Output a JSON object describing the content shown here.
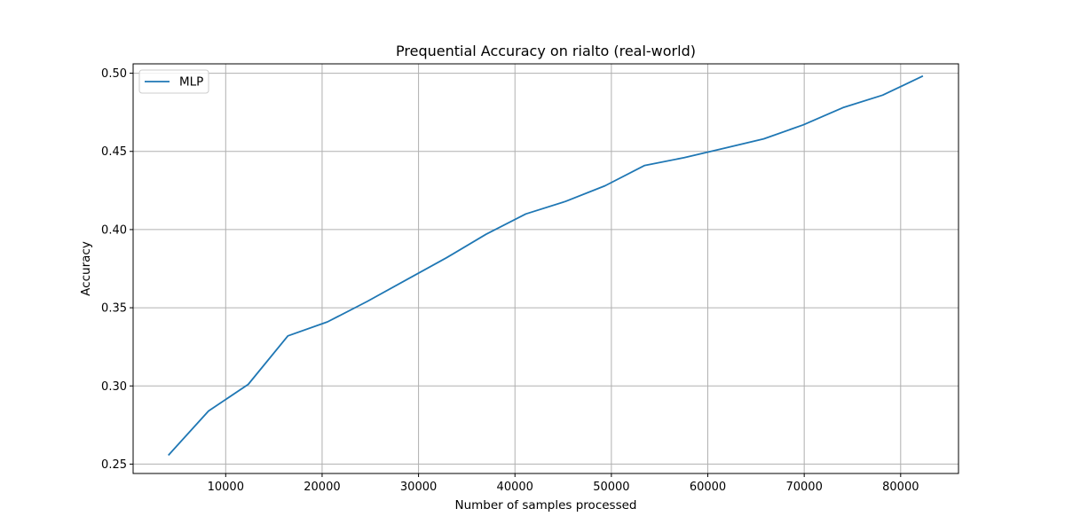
{
  "chart_data": {
    "type": "line",
    "title": "Prequential Accuracy on rialto (real-world)",
    "xlabel": "Number of samples processed",
    "ylabel": "Accuracy",
    "xlim": [
      400,
      86000
    ],
    "ylim": [
      0.244,
      0.506
    ],
    "xticks": [
      10000,
      20000,
      30000,
      40000,
      50000,
      60000,
      70000,
      80000
    ],
    "yticks": [
      0.25,
      0.3,
      0.35,
      0.4,
      0.45,
      0.5
    ],
    "xtick_labels": [
      "10000",
      "20000",
      "30000",
      "40000",
      "50000",
      "60000",
      "70000",
      "80000"
    ],
    "ytick_labels": [
      "0.25",
      "0.30",
      "0.35",
      "0.40",
      "0.45",
      "0.50"
    ],
    "grid": true,
    "legend_position": "top-left",
    "series": [
      {
        "name": "MLP",
        "color": "#1f77b4",
        "x": [
          4112,
          8224,
          12336,
          16448,
          20560,
          24672,
          28784,
          32896,
          37008,
          41120,
          45232,
          49344,
          53456,
          57568,
          61680,
          65792,
          69904,
          74016,
          78128,
          82240
        ],
        "y": [
          0.256,
          0.284,
          0.301,
          0.332,
          0.341,
          0.354,
          0.368,
          0.382,
          0.397,
          0.41,
          0.418,
          0.428,
          0.441,
          0.446,
          0.452,
          0.458,
          0.467,
          0.478,
          0.486,
          0.498
        ]
      }
    ]
  }
}
